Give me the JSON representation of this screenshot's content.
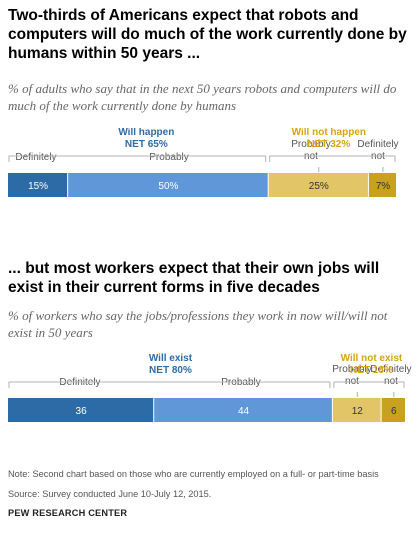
{
  "chart1": {
    "title": "Two-thirds of Americans expect that robots and computers will do much of the work currently done by humans within 50 years ...",
    "subtitle": "% of adults who say that in the next 50 years robots and computers will do much of the work currently done by humans"
  },
  "chart2": {
    "title": "... but most workers expect that their own jobs will exist in their current forms in five decades",
    "subtitle": "% of workers who say the jobs/professions they work in now will/will not exist in 50 years"
  },
  "note": "Note: Second chart based on those who are currently employed on a full- or part-time basis",
  "source": "Source: Survey conducted June 10-July 12, 2015.",
  "footer": "PEW RESEARCH CENTER",
  "colors": {
    "definitely_yes": "#2d6ba6",
    "probably_yes": "#5f97d8",
    "probably_no": "#e2c566",
    "definitely_no": "#c7a11f",
    "group_yes": "#2d6ba6",
    "group_no": "#d4a414"
  },
  "chart_data": [
    {
      "type": "bar",
      "orientation": "horizontal-stacked",
      "groups": [
        {
          "label": "Will happen",
          "net": "NET 65%",
          "color": "#2d6ba6"
        },
        {
          "label": "Will not happen",
          "net": "NET 32%",
          "color": "#d4a414"
        }
      ],
      "categories": [
        "Definitely",
        "Probably",
        "Probably not",
        "Definitely not"
      ],
      "values": [
        15,
        50,
        25,
        7
      ],
      "value_labels": [
        "15%",
        "50%",
        "25%",
        "7%"
      ],
      "colors": [
        "#2d6ba6",
        "#5f97d8",
        "#e2c566",
        "#c7a11f"
      ],
      "xlim": [
        0,
        97
      ]
    },
    {
      "type": "bar",
      "orientation": "horizontal-stacked",
      "groups": [
        {
          "label": "Will exist",
          "net": "NET 80%",
          "color": "#2d6ba6"
        },
        {
          "label": "Will not exist",
          "net": "NET 18%",
          "color": "#d4a414"
        }
      ],
      "categories": [
        "Definitely",
        "Probably",
        "Probably not",
        "Definitely not"
      ],
      "values": [
        36,
        44,
        12,
        6
      ],
      "value_labels": [
        "36",
        "44",
        "12",
        "6"
      ],
      "colors": [
        "#2d6ba6",
        "#5f97d8",
        "#e2c566",
        "#c7a11f"
      ],
      "xlim": [
        0,
        98
      ]
    }
  ]
}
